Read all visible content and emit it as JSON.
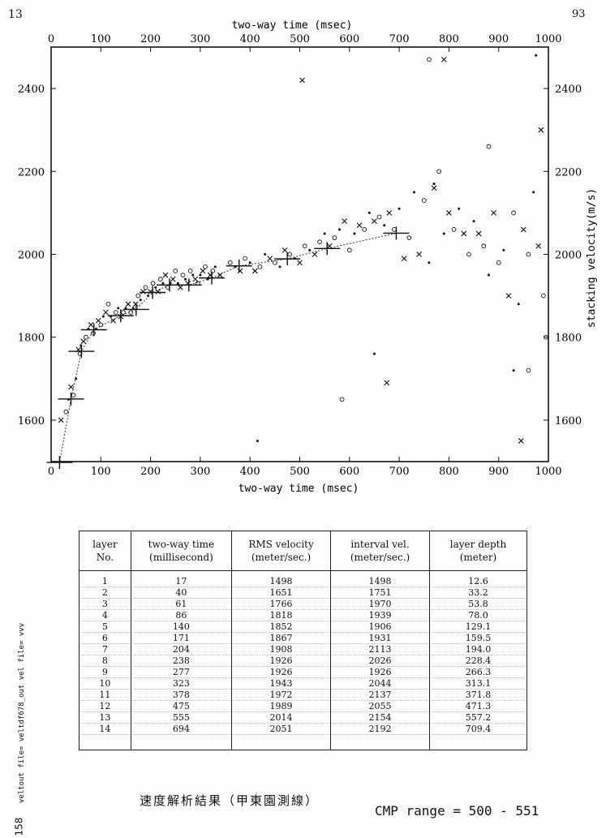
{
  "page": {
    "number_left": "13",
    "number_right": "93"
  },
  "chart_data": {
    "type": "scatter",
    "title": "",
    "xlabel": "two-way time (msec)",
    "ylabel": "stacking velocity(m/s)",
    "xlim": [
      0,
      1000
    ],
    "ylim": [
      1500,
      2500
    ],
    "xticks": [
      0,
      100,
      200,
      300,
      400,
      500,
      600,
      700,
      800,
      900,
      1000
    ],
    "yticks": [
      1600,
      1800,
      2000,
      2200,
      2400
    ],
    "grid": false,
    "picked_velocity_function": {
      "name": "",
      "x": [
        0,
        17,
        40,
        61,
        86,
        140,
        171,
        204,
        238,
        277,
        323,
        378,
        475,
        555,
        694
      ],
      "y": [
        1498,
        1498,
        1651,
        1766,
        1818,
        1852,
        1867,
        1908,
        1926,
        1926,
        1943,
        1972,
        1989,
        2014,
        2051
      ]
    },
    "velocity_spectrum_picks": {
      "x": [
        20,
        30,
        35,
        40,
        45,
        50,
        55,
        58,
        60,
        65,
        70,
        75,
        80,
        85,
        90,
        95,
        100,
        105,
        110,
        115,
        120,
        125,
        130,
        135,
        140,
        145,
        150,
        155,
        160,
        165,
        170,
        175,
        180,
        185,
        190,
        195,
        200,
        205,
        210,
        215,
        220,
        225,
        230,
        235,
        240,
        245,
        250,
        255,
        260,
        265,
        270,
        275,
        280,
        285,
        290,
        295,
        300,
        305,
        310,
        315,
        320,
        325,
        330,
        340,
        360,
        370,
        380,
        390,
        400,
        410,
        420,
        430,
        440,
        450,
        460,
        470,
        480,
        490,
        500,
        510,
        520,
        530,
        540,
        550,
        560,
        570,
        580,
        590,
        600,
        610,
        620,
        630,
        640,
        650,
        660,
        670,
        680,
        690,
        700,
        710,
        720,
        730,
        740,
        750,
        760,
        770,
        780,
        790,
        800,
        810,
        820,
        830,
        840,
        850,
        860,
        870,
        880,
        890,
        900,
        910,
        920,
        930,
        940,
        950,
        960,
        970,
        980,
        990,
        415,
        505,
        585,
        650,
        675,
        760,
        770,
        790,
        880,
        930,
        945,
        960,
        975,
        985,
        995
      ],
      "y": [
        1600,
        1620,
        1650,
        1680,
        1660,
        1700,
        1770,
        1760,
        1780,
        1790,
        1800,
        1820,
        1830,
        1810,
        1820,
        1840,
        1830,
        1850,
        1860,
        1880,
        1850,
        1840,
        1860,
        1870,
        1850,
        1860,
        1870,
        1880,
        1860,
        1870,
        1880,
        1900,
        1890,
        1910,
        1920,
        1900,
        1910,
        1930,
        1920,
        1910,
        1940,
        1930,
        1950,
        1920,
        1930,
        1940,
        1960,
        1930,
        1920,
        1950,
        1940,
        1930,
        1960,
        1950,
        1940,
        1930,
        1950,
        1960,
        1970,
        1940,
        1950,
        1960,
        1970,
        1950,
        1980,
        1970,
        1960,
        1990,
        1980,
        1960,
        1970,
        2000,
        1990,
        1980,
        1970,
        2010,
        2000,
        1990,
        1980,
        2020,
        2010,
        2000,
        2030,
        2050,
        2020,
        2040,
        2060,
        2080,
        2010,
        2050,
        2070,
        2060,
        2100,
        2080,
        2090,
        2070,
        2100,
        2060,
        2110,
        1990,
        2040,
        2150,
        2000,
        2130,
        1980,
        2160,
        2200,
        2050,
        2100,
        2060,
        2110,
        2050,
        2000,
        2080,
        2050,
        2020,
        1950,
        2100,
        1980,
        2010,
        1900,
        2100,
        1880,
        2060,
        2000,
        2150,
        2020,
        1900,
        1550,
        2420,
        1650,
        1760,
        1690,
        2470,
        2170,
        2470,
        2260,
        1720,
        1550,
        1720,
        2480,
        2300,
        1800
      ]
    }
  },
  "table": {
    "headers": [
      {
        "line1": "layer",
        "line2": "No."
      },
      {
        "line1": "two-way time",
        "line2": "(millisecond)"
      },
      {
        "line1": "RMS velocity",
        "line2": "(meter/sec.)"
      },
      {
        "line1": "interval vel.",
        "line2": "(meter/sec.)"
      },
      {
        "line1": "layer depth",
        "line2": "(meter)"
      }
    ],
    "layer_no": [
      "1",
      "2",
      "3",
      "4",
      "5",
      "6",
      "7",
      "8",
      "9",
      "10",
      "11",
      "12",
      "13",
      "14"
    ],
    "two_way_time": [
      "17",
      "40",
      "61",
      "86",
      "140",
      "171",
      "204",
      "238",
      "277",
      "323",
      "378",
      "475",
      "555",
      "694"
    ],
    "rms_velocity": [
      "1498",
      "1651",
      "1766",
      "1818",
      "1852",
      "1867",
      "1908",
      "1926",
      "1926",
      "1943",
      "1972",
      "1989",
      "2014",
      "2051"
    ],
    "interval_vel": [
      "1498",
      "1751",
      "1970",
      "1939",
      "1906",
      "1931",
      "2113",
      "2026",
      "1926",
      "2044",
      "2137",
      "2055",
      "2154",
      "2192"
    ],
    "layer_depth": [
      "12.6",
      "33.2",
      "53.8",
      "78.0",
      "129.1",
      "159.5",
      "194.0",
      "228.4",
      "266.3",
      "313.1",
      "371.8",
      "471.3",
      "557.2",
      "709.4"
    ]
  },
  "footer": {
    "title_cjk": "速度解析結果（甲東園測線）",
    "cmp_range": "CMP range = 500 - 551",
    "side_note": "veltout file= veltdf678_out  vel file= vvv",
    "bottom_note": "158"
  }
}
